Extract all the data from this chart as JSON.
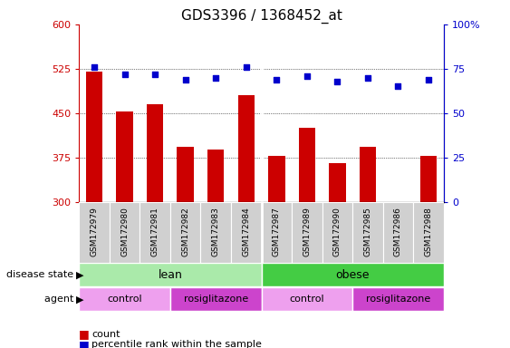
{
  "title": "GDS3396 / 1368452_at",
  "samples": [
    "GSM172979",
    "GSM172980",
    "GSM172981",
    "GSM172982",
    "GSM172983",
    "GSM172984",
    "GSM172987",
    "GSM172989",
    "GSM172990",
    "GSM172985",
    "GSM172986",
    "GSM172988"
  ],
  "bar_values": [
    520,
    452,
    465,
    393,
    388,
    480,
    378,
    425,
    366,
    393,
    300,
    378
  ],
  "dot_values": [
    76,
    72,
    72,
    69,
    70,
    76,
    69,
    71,
    68,
    70,
    65,
    69
  ],
  "bar_base": 300,
  "ylim_left": [
    300,
    600
  ],
  "ylim_right": [
    0,
    100
  ],
  "yticks_left": [
    300,
    375,
    450,
    525,
    600
  ],
  "yticks_right": [
    0,
    25,
    50,
    75,
    100
  ],
  "bar_color": "#cc0000",
  "dot_color": "#0000cc",
  "disease_state_groups": [
    {
      "label": "lean",
      "start": 0,
      "end": 6,
      "color": "#aaeaaa"
    },
    {
      "label": "obese",
      "start": 6,
      "end": 12,
      "color": "#44cc44"
    }
  ],
  "agent_groups": [
    {
      "label": "control",
      "start": 0,
      "end": 3,
      "color": "#eea0ee"
    },
    {
      "label": "rosiglitazone",
      "start": 3,
      "end": 6,
      "color": "#cc44cc"
    },
    {
      "label": "control",
      "start": 6,
      "end": 9,
      "color": "#eea0ee"
    },
    {
      "label": "rosiglitazone",
      "start": 9,
      "end": 12,
      "color": "#cc44cc"
    }
  ],
  "legend_count_color": "#cc0000",
  "legend_dot_color": "#0000cc",
  "ylabel_left_color": "#cc0000",
  "ylabel_right_color": "#0000cc",
  "xticklabel_bg": "#d0d0d0",
  "legend_count_label": "count",
  "legend_dot_label": "percentile rank within the sample"
}
